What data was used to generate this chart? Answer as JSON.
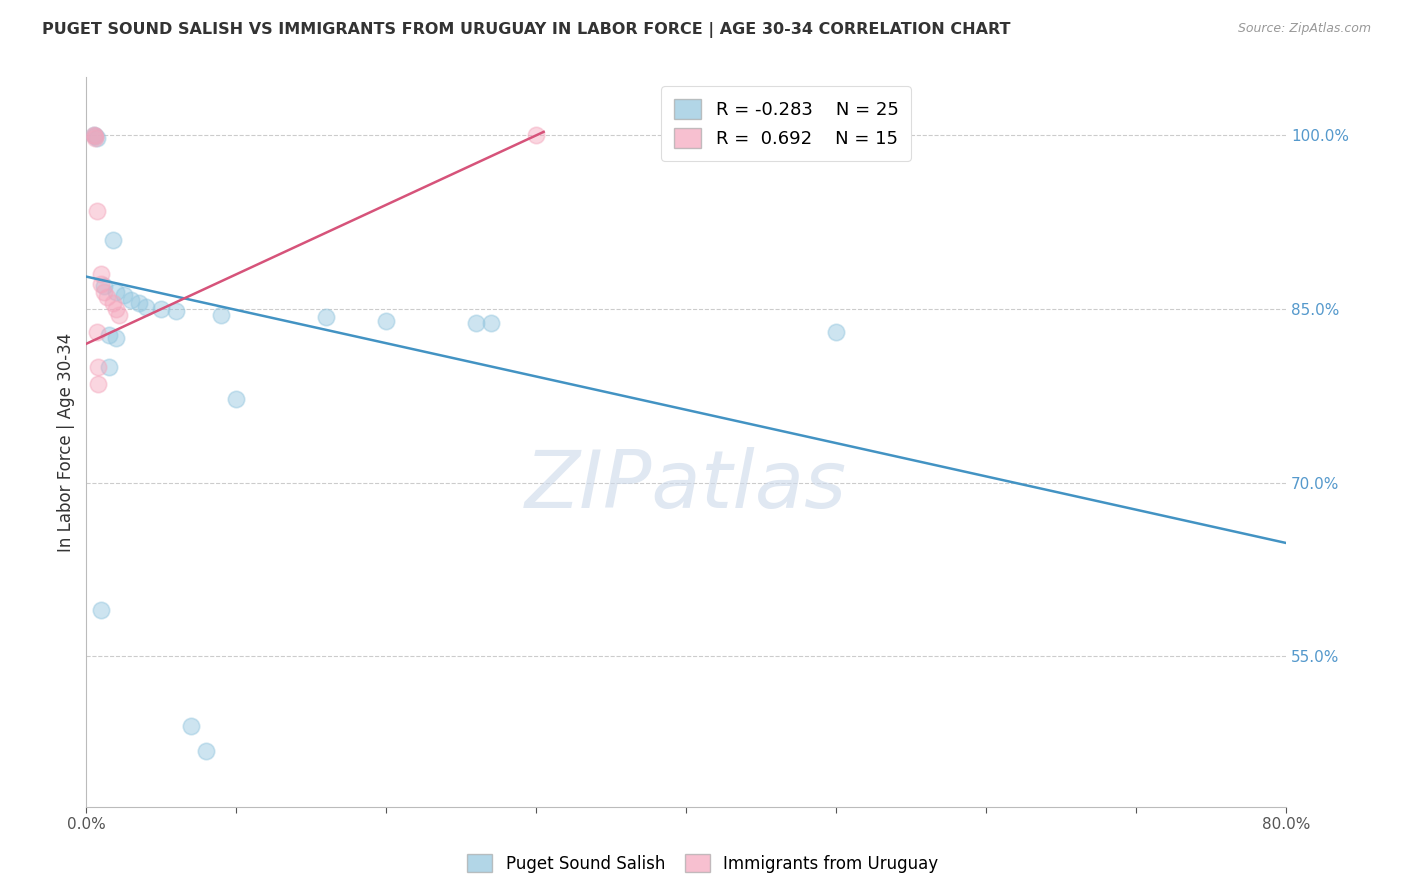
{
  "title": "PUGET SOUND SALISH VS IMMIGRANTS FROM URUGUAY IN LABOR FORCE | AGE 30-34 CORRELATION CHART",
  "source": "Source: ZipAtlas.com",
  "ylabel": "In Labor Force | Age 30-34",
  "xlim": [
    0.0,
    0.8
  ],
  "ylim": [
    0.42,
    1.05
  ],
  "xticks": [
    0.0,
    0.1,
    0.2,
    0.3,
    0.4,
    0.5,
    0.6,
    0.7,
    0.8
  ],
  "xticklabels": [
    "0.0%",
    "",
    "",
    "",
    "",
    "",
    "",
    "",
    "80.0%"
  ],
  "yticks": [
    0.55,
    0.7,
    0.85,
    1.0
  ],
  "yticklabels": [
    "55.0%",
    "70.0%",
    "85.0%",
    "100.0%"
  ],
  "blue_points": [
    [
      0.005,
      1.0
    ],
    [
      0.006,
      0.999
    ],
    [
      0.007,
      0.998
    ],
    [
      0.018,
      0.91
    ],
    [
      0.012,
      0.87
    ],
    [
      0.02,
      0.865
    ],
    [
      0.025,
      0.862
    ],
    [
      0.03,
      0.858
    ],
    [
      0.035,
      0.855
    ],
    [
      0.04,
      0.852
    ],
    [
      0.05,
      0.85
    ],
    [
      0.06,
      0.848
    ],
    [
      0.09,
      0.845
    ],
    [
      0.16,
      0.843
    ],
    [
      0.2,
      0.84
    ],
    [
      0.26,
      0.838
    ],
    [
      0.27,
      0.838
    ],
    [
      0.5,
      0.83
    ],
    [
      0.015,
      0.828
    ],
    [
      0.02,
      0.825
    ],
    [
      0.015,
      0.8
    ],
    [
      0.1,
      0.772
    ],
    [
      0.01,
      0.59
    ],
    [
      0.07,
      0.49
    ],
    [
      0.08,
      0.468
    ]
  ],
  "pink_points": [
    [
      0.005,
      1.0
    ],
    [
      0.006,
      0.999
    ],
    [
      0.006,
      0.998
    ],
    [
      0.007,
      0.935
    ],
    [
      0.01,
      0.88
    ],
    [
      0.01,
      0.872
    ],
    [
      0.012,
      0.865
    ],
    [
      0.014,
      0.86
    ],
    [
      0.018,
      0.855
    ],
    [
      0.02,
      0.85
    ],
    [
      0.022,
      0.845
    ],
    [
      0.3,
      1.0
    ],
    [
      0.007,
      0.83
    ],
    [
      0.008,
      0.8
    ],
    [
      0.008,
      0.785
    ]
  ],
  "blue_R": -0.283,
  "blue_N": 25,
  "pink_R": 0.692,
  "pink_N": 15,
  "blue_color": "#92c5de",
  "pink_color": "#f4a6bc",
  "blue_line_color": "#4393c3",
  "pink_line_color": "#d6537a",
  "blue_line_x0": 0.0,
  "blue_line_y0": 0.878,
  "blue_line_x1": 0.8,
  "blue_line_y1": 0.648,
  "pink_line_x0": 0.0,
  "pink_line_y0": 0.82,
  "pink_line_x1": 0.305,
  "pink_line_y1": 1.003,
  "legend_label_blue": "Puget Sound Salish",
  "legend_label_pink": "Immigrants from Uruguay",
  "watermark": "ZIPatlas",
  "grid_color": "#cccccc",
  "background_color": "#ffffff"
}
